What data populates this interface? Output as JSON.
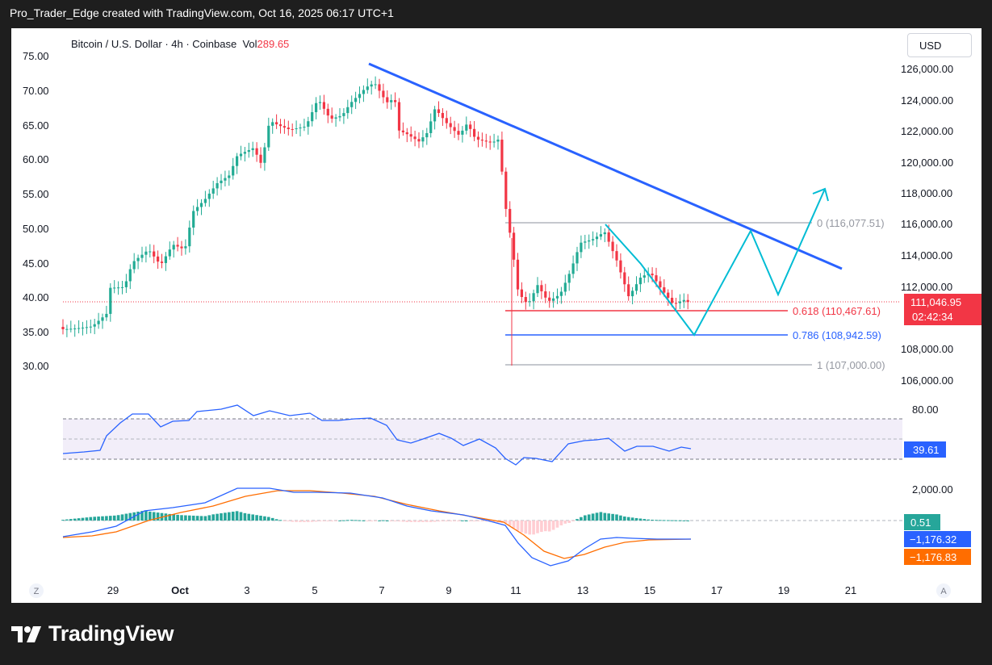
{
  "caption": "Pro_Trader_Edge created with TradingView.com, Oct 16, 2025 06:17 UTC+1",
  "header": {
    "symbol": "Bitcoin / U.S. Dollar · 4h · Coinbase",
    "vol_label": "Vol",
    "vol_value": "289.65",
    "currency_button": "USD"
  },
  "left_axis": [
    "75.00",
    "70.00",
    "65.00",
    "60.00",
    "55.00",
    "50.00",
    "45.00",
    "40.00",
    "35.00",
    "30.00"
  ],
  "right_axis": [
    "126,000.00",
    "124,000.00",
    "122,000.00",
    "120,000.00",
    "118,000.00",
    "116,000.00",
    "114,000.00",
    "112,000.00",
    "108,000.00",
    "106,000.00"
  ],
  "price_tag": {
    "price": "111,046.95",
    "countdown": "02:42:34",
    "color": "#f23645"
  },
  "fib_levels": [
    {
      "label": "0 (116,077.51)",
      "color": "#b2b5be"
    },
    {
      "label": "0.618 (110,467.61)",
      "color": "#f23645"
    },
    {
      "label": "0.786 (108,942.59)",
      "color": "#2962ff"
    },
    {
      "label": "1 (107,000.00)",
      "color": "#b2b5be"
    }
  ],
  "rsi": {
    "axis_label": "80.00",
    "value": "39.61",
    "color": "#7e57c2"
  },
  "macd": {
    "axis_label": "2,000.00",
    "histogram": "0.51",
    "macd": "−1,176.32",
    "signal": "−1,176.83",
    "hist_color": "#26a69a",
    "macd_color": "#2962ff",
    "signal_color": "#ff6d00"
  },
  "time_axis": [
    "29",
    "Oct",
    "3",
    "5",
    "7",
    "9",
    "11",
    "13",
    "15",
    "17",
    "19",
    "21"
  ],
  "corner_buttons": {
    "left": "Z",
    "right": "A"
  },
  "brand": "TradingView",
  "colors": {
    "up": "#22ab94",
    "down": "#f23645",
    "trendline": "#2962ff",
    "projection": "#00bcd4"
  }
}
